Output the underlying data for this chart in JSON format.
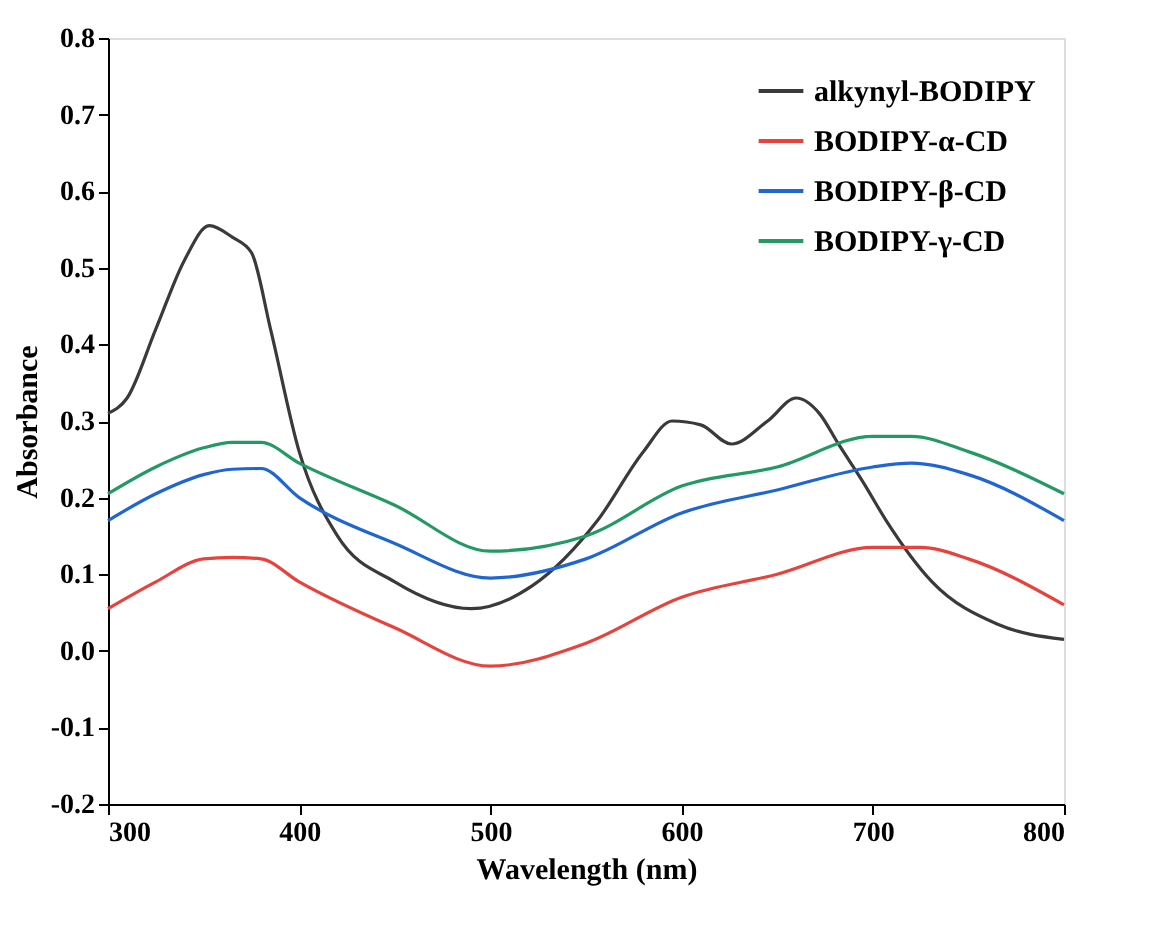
{
  "chart_data": {
    "type": "line",
    "xlabel": "Wavelength (nm)",
    "ylabel": "Absorbance",
    "xlim": [
      300,
      800
    ],
    "xticks": [
      300,
      400,
      500,
      600,
      700,
      800
    ],
    "ylim": [
      -0.2,
      0.8
    ],
    "yticks": [
      -0.2,
      -0.1,
      {
        "value": 0,
        "label": "0.0"
      },
      0.1,
      0.2,
      0.3,
      0.4,
      0.5,
      0.6,
      0.7,
      0.8
    ],
    "grid": false,
    "legend": "top right",
    "marker": "none",
    "line_style": "solid",
    "series": [
      {
        "name": "alkynyl-BODIPY",
        "color": "#3a3a3a",
        "x": [
          300,
          310,
          325,
          340,
          353,
          365,
          375,
          385,
          400,
          420,
          450,
          490,
          522,
          556,
          580,
          595,
          610,
          626,
          645,
          660,
          672,
          682,
          695,
          707,
          731,
          765,
          800
        ],
        "values": [
          0.31,
          0.33,
          0.42,
          0.51,
          0.555,
          0.54,
          0.52,
          0.42,
          0.26,
          0.15,
          0.09,
          0.055,
          0.085,
          0.17,
          0.26,
          0.3,
          0.295,
          0.27,
          0.3,
          0.33,
          0.31,
          0.27,
          0.22,
          0.17,
          0.09,
          0.035,
          0.015
        ]
      },
      {
        "name": "BODIPY-α-CD",
        "color": "#e8423c",
        "x": [
          300,
          325,
          350,
          365,
          380,
          400,
          450,
          500,
          550,
          600,
          650,
          700,
          725,
          750,
          800
        ],
        "values": [
          0.055,
          0.09,
          0.12,
          0.122,
          0.12,
          0.09,
          0.03,
          -0.02,
          0.01,
          0.07,
          0.1,
          0.135,
          0.135,
          0.12,
          0.06
        ]
      },
      {
        "name": "BODIPY-β-CD",
        "color": "#1f66d1",
        "x": [
          300,
          325,
          350,
          365,
          380,
          400,
          450,
          500,
          550,
          600,
          650,
          700,
          720,
          750,
          800
        ],
        "values": [
          0.17,
          0.205,
          0.23,
          0.237,
          0.238,
          0.2,
          0.14,
          0.095,
          0.12,
          0.18,
          0.21,
          0.24,
          0.245,
          0.23,
          0.17
        ]
      },
      {
        "name": "BODIPY-γ-CD",
        "color": "#239a63",
        "x": [
          300,
          325,
          350,
          365,
          380,
          400,
          450,
          500,
          550,
          600,
          650,
          700,
          720,
          750,
          800
        ],
        "values": [
          0.205,
          0.24,
          0.265,
          0.272,
          0.272,
          0.245,
          0.19,
          0.13,
          0.15,
          0.215,
          0.24,
          0.28,
          0.28,
          0.26,
          0.205
        ]
      }
    ]
  }
}
